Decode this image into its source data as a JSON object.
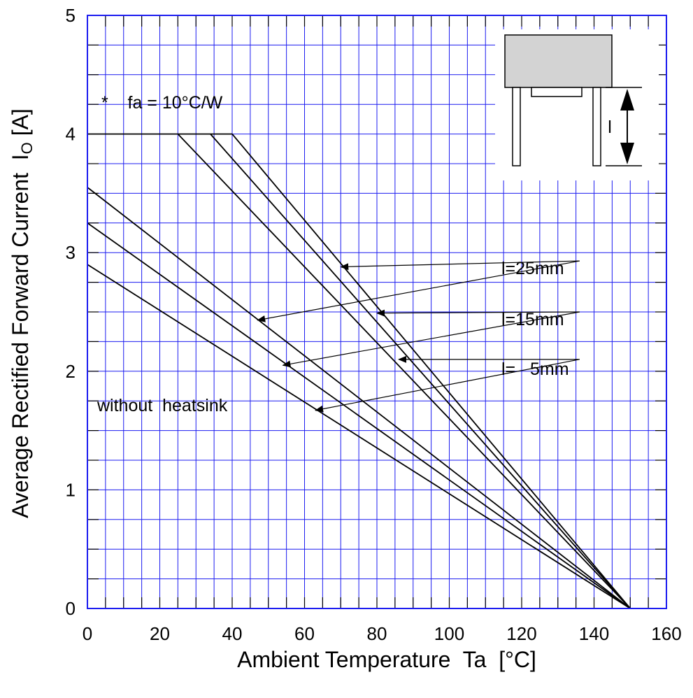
{
  "chart_data": {
    "type": "line",
    "xlabel": "Ambient Temperature  Ta  [°C]",
    "ylabel": "Average Rectified Forward Current  I",
    "ylabel_subscript": "O",
    "ylabel_unit": " [A]",
    "xlim": [
      0,
      160
    ],
    "ylim": [
      0,
      5
    ],
    "x_ticks": [
      0,
      20,
      40,
      60,
      80,
      100,
      120,
      140,
      160
    ],
    "y_ticks": [
      0,
      1,
      2,
      3,
      4,
      5
    ],
    "grid": true,
    "grid_minor_x": 5,
    "grid_minor_y": 0.25,
    "series": [
      {
        "points": [
          [
            40,
            4.0
          ],
          [
            150,
            0.0
          ]
        ]
      },
      {
        "points": [
          [
            34,
            4.0
          ],
          [
            150,
            0.0
          ]
        ]
      },
      {
        "points": [
          [
            25,
            4.0
          ],
          [
            150,
            0.0
          ]
        ]
      },
      {
        "points": [
          [
            0,
            3.55
          ],
          [
            150,
            0.0
          ]
        ]
      },
      {
        "points": [
          [
            0,
            3.25
          ],
          [
            150,
            0.0
          ]
        ]
      },
      {
        "points": [
          [
            0,
            2.9
          ],
          [
            150,
            0.0
          ]
        ]
      }
    ],
    "annotations": [
      {
        "text": "*    fa = 10°C/W"
      },
      {
        "text": "without  heatsink"
      },
      {
        "text": "l=25mm",
        "arrows_to": [
          [
            70,
            2.88
          ],
          [
            47,
            2.43
          ]
        ]
      },
      {
        "text": "l=15mm",
        "arrows_to": [
          [
            80,
            2.49
          ],
          [
            54,
            2.05
          ]
        ]
      },
      {
        "text": "l=   5mm",
        "arrows_to": [
          [
            86,
            2.1
          ],
          [
            63,
            1.67
          ]
        ]
      }
    ],
    "inset": {
      "dimension_label": "l"
    }
  },
  "colors": {
    "grid": "#1c1cf0",
    "series": "#000000",
    "frame": "#1c1cf0",
    "inset_body": "#d3d3d3"
  }
}
